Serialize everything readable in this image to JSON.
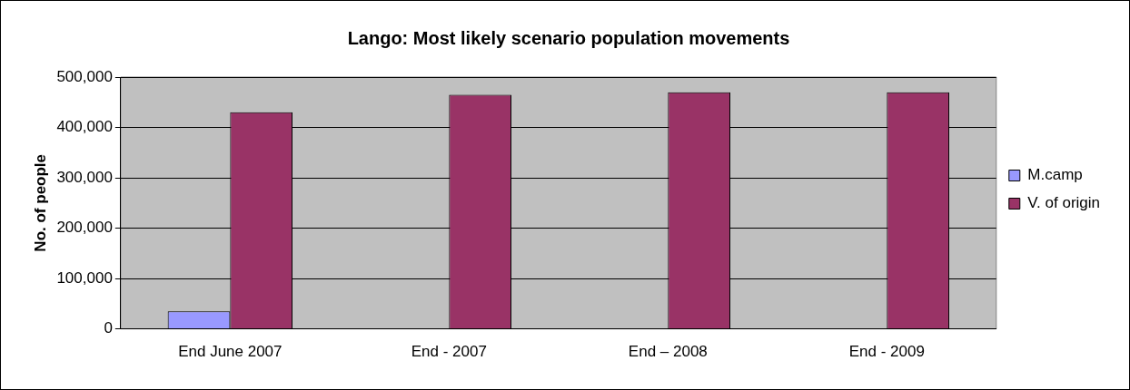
{
  "chart_data": {
    "type": "bar",
    "title": "Lango: Most likely scenario population movements",
    "ylabel": "No. of people",
    "categories": [
      "End June 2007",
      "End - 2007",
      "End – 2008",
      "End - 2009"
    ],
    "series": [
      {
        "name": "M.camp",
        "color": "#9999ff",
        "values": [
          35000,
          0,
          0,
          0
        ]
      },
      {
        "name": "V. of origin",
        "color": "#993366",
        "values": [
          430000,
          465000,
          470000,
          470000
        ]
      }
    ],
    "ylim": [
      0,
      500000
    ],
    "yticks": [
      {
        "value": 0,
        "label": "0"
      },
      {
        "value": 100000,
        "label": "100,000"
      },
      {
        "value": 200000,
        "label": "200,000"
      },
      {
        "value": 300000,
        "label": "300,000"
      },
      {
        "value": 400000,
        "label": "400,000"
      },
      {
        "value": 500000,
        "label": "500,000"
      }
    ],
    "grid": "y",
    "legend": "right"
  }
}
